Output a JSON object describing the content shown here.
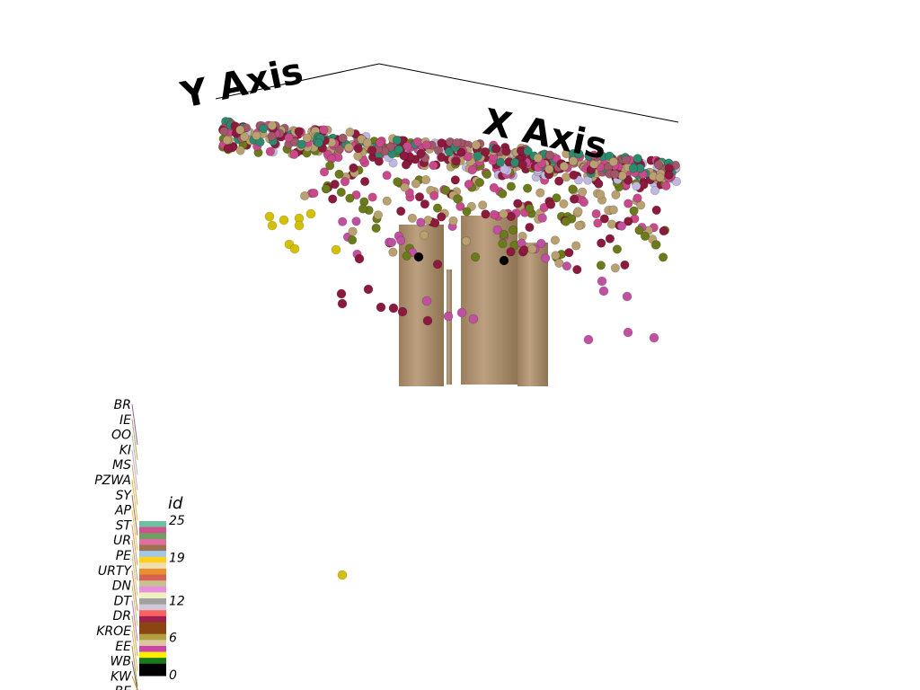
{
  "chart_data": {
    "type": "scatter",
    "projection": "3d",
    "axis_labels": {
      "x": "X Axis",
      "y": "Y Axis"
    },
    "colorbar": {
      "title": "id",
      "min": 0,
      "max": 25,
      "tick_labels": [
        "25",
        "19",
        "12",
        "6",
        "0"
      ],
      "colors": [
        "#000000",
        "#000000",
        "#1a7a1a",
        "#ffee00",
        "#cc44aa",
        "#d9c8a0",
        "#b0a040",
        "#8b4513",
        "#8b4513",
        "#a02050",
        "#ff6060",
        "#d0c8d8",
        "#a0a0a0",
        "#f0f0c0",
        "#e890e0",
        "#c8c090",
        "#d86050",
        "#e89030",
        "#f0e0b0",
        "#ffd020",
        "#a0c8e8",
        "#a07050",
        "#e070a0",
        "#70a060",
        "#d05090",
        "#70c0a0"
      ]
    },
    "category_labels": [
      "BR",
      "IE",
      "OO",
      "KI",
      "MS",
      "PZWA",
      "SY",
      "AP",
      "ST",
      "UR",
      "PE",
      "URTY",
      "DN",
      "DT",
      "DR",
      "KROE",
      "EE",
      "WB",
      "KW",
      "BE"
    ],
    "series_colors": [
      "#c84a8a",
      "#8b1a3c",
      "#a05868",
      "#2e8a6e",
      "#b8a070",
      "#c0b8e0",
      "#6b7a1a",
      "#d4c000",
      "#cc4a4a",
      "#c050a0",
      "#000000"
    ]
  }
}
